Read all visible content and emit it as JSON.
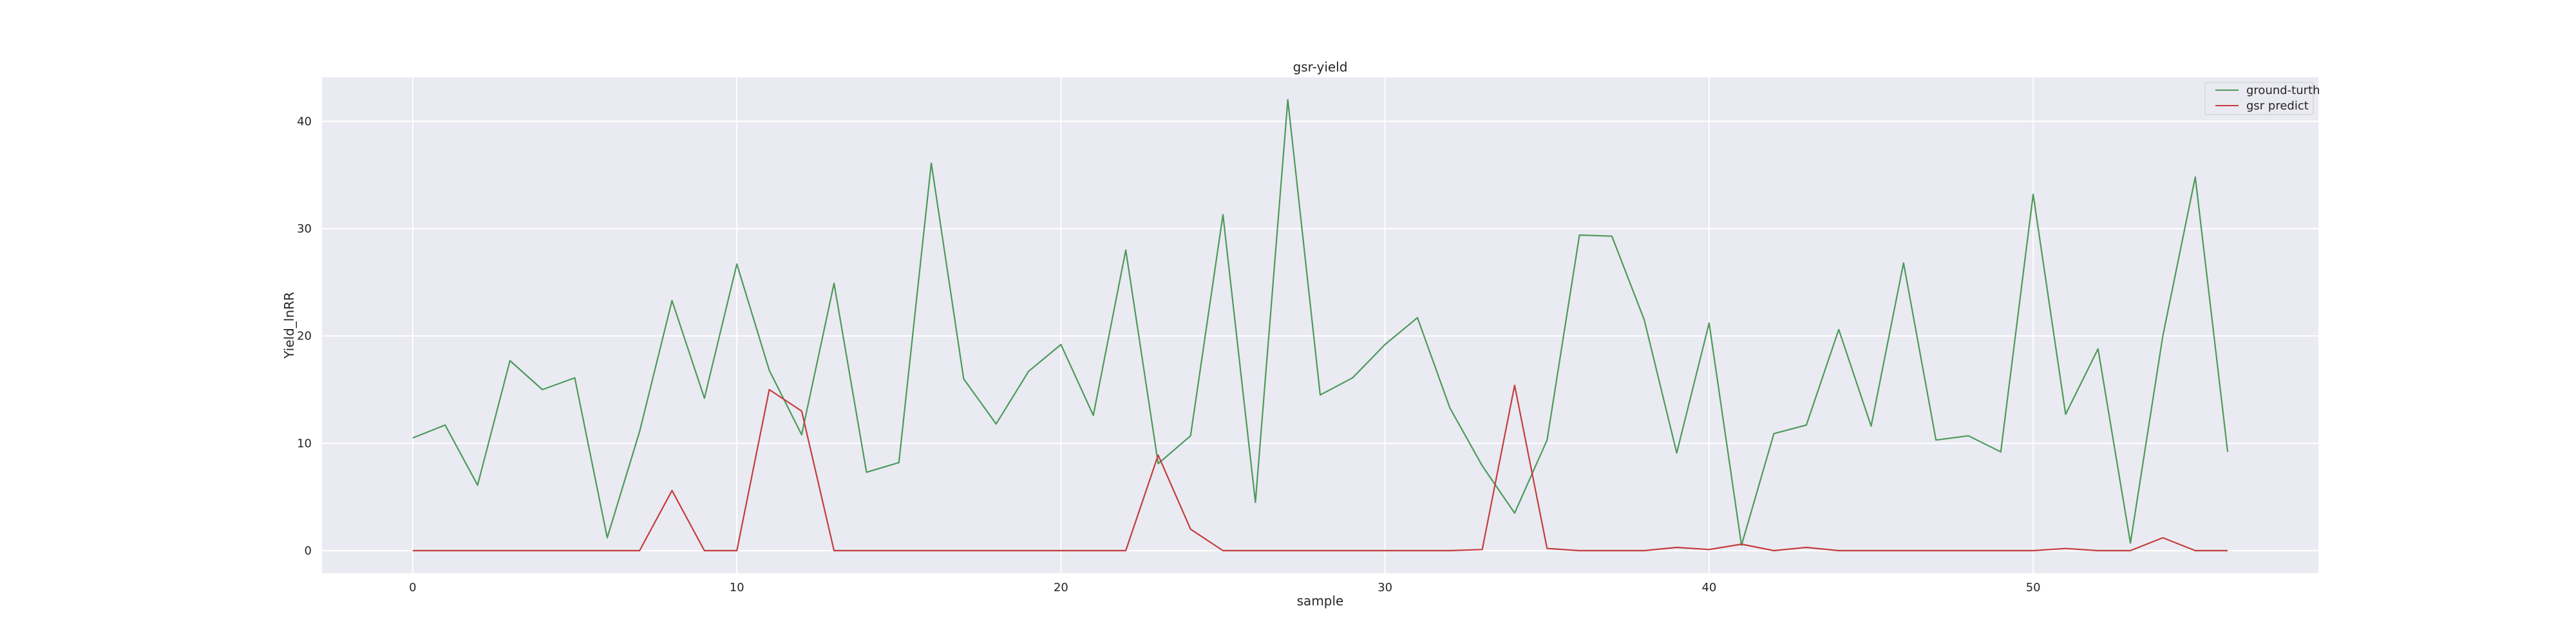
{
  "chart_data": {
    "type": "line",
    "title": "gsr-yield",
    "xlabel": "sample",
    "ylabel": "Yield_lnRR",
    "xlim": [
      -2.8,
      58.8
    ],
    "ylim": [
      -2.1,
      44.1
    ],
    "xticks": [
      0,
      10,
      20,
      30,
      40,
      50
    ],
    "yticks": [
      0,
      10,
      20,
      30,
      40
    ],
    "grid": true,
    "legend_position": "top-right",
    "x": [
      0,
      1,
      2,
      3,
      4,
      5,
      6,
      7,
      8,
      9,
      10,
      11,
      12,
      13,
      14,
      15,
      16,
      17,
      18,
      19,
      20,
      21,
      22,
      23,
      24,
      25,
      26,
      27,
      28,
      29,
      30,
      31,
      32,
      33,
      34,
      35,
      36,
      37,
      38,
      39,
      40,
      41,
      42,
      43,
      44,
      45,
      46,
      47,
      48,
      49,
      50,
      51,
      52,
      53,
      54,
      55,
      56
    ],
    "series": [
      {
        "name": "ground-turth",
        "color": "#4c9a5a",
        "values": [
          10.5,
          11.7,
          6.1,
          17.7,
          15.0,
          16.1,
          1.2,
          11.1,
          23.3,
          14.2,
          26.7,
          16.8,
          10.8,
          24.9,
          7.3,
          8.2,
          36.1,
          16.0,
          11.8,
          16.7,
          19.2,
          12.6,
          28.0,
          8.1,
          10.7,
          31.3,
          4.5,
          42.0,
          14.5,
          16.1,
          19.2,
          21.7,
          13.3,
          7.9,
          3.5,
          10.3,
          29.4,
          29.3,
          21.5,
          9.1,
          21.2,
          0.5,
          10.9,
          11.7,
          20.6,
          11.6,
          26.8,
          10.3,
          10.7,
          9.2,
          33.2,
          12.7,
          18.8,
          0.7,
          20.0,
          34.8,
          9.2
        ]
      },
      {
        "name": "gsr predict",
        "color": "#c33d3d",
        "values": [
          0,
          0,
          0,
          0,
          0,
          0,
          0,
          0,
          5.6,
          0,
          0,
          15.0,
          13.0,
          0,
          0,
          0,
          0,
          0,
          0,
          0,
          0,
          0,
          0,
          8.9,
          2.0,
          0,
          0,
          0,
          0,
          0,
          0,
          0,
          0,
          0.1,
          15.4,
          0.2,
          0,
          0,
          0,
          0.3,
          0.1,
          0.6,
          0,
          0.3,
          0,
          0,
          0,
          0,
          0,
          0,
          0,
          0.2,
          0,
          0,
          1.2,
          0,
          0
        ]
      }
    ]
  }
}
